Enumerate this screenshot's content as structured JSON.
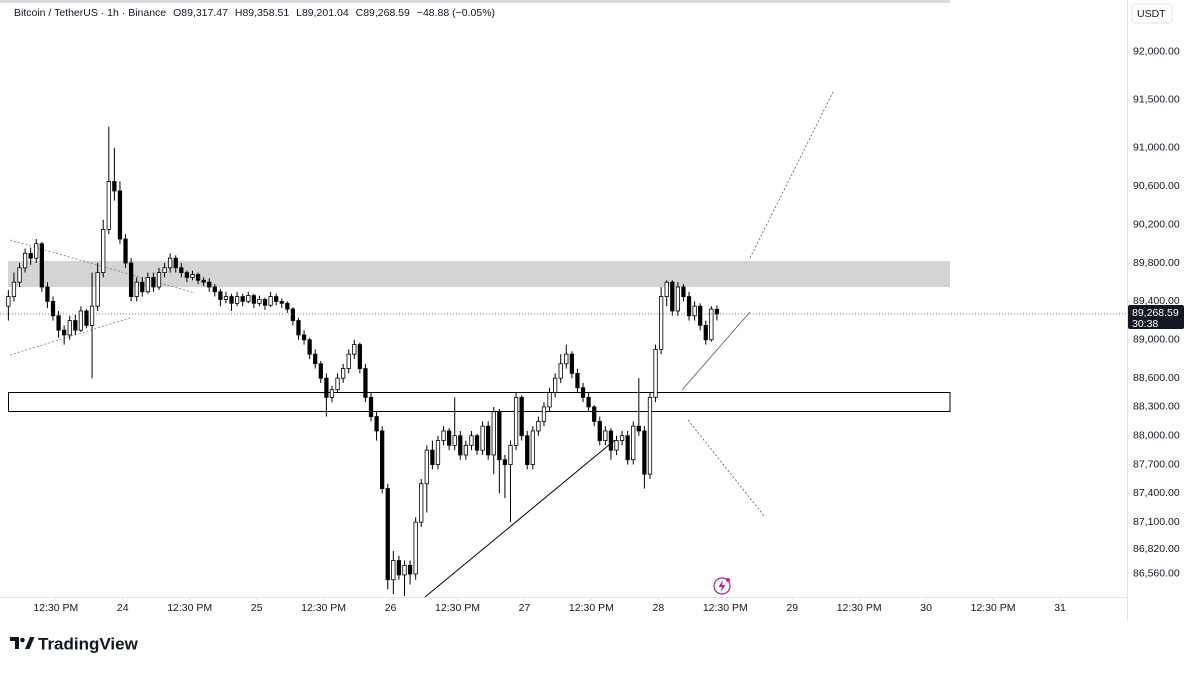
{
  "chart_data": {
    "type": "candlestick",
    "header": {
      "symbol": "Bitcoin / TetherUS · 1h · Binance",
      "letters": [
        "O",
        "H",
        "L",
        "C"
      ],
      "open": "89,317.47",
      "high": "89,358.51",
      "low": "89,201.04",
      "close": "89,268.59",
      "change": "−48.88 (−0.05%)"
    },
    "currency": "USDT",
    "price_label": "89,268.59",
    "countdown": "30:38",
    "brand": "TradingView",
    "up_color": "#ffffff",
    "down_color": "#000000",
    "xlim": [
      -1.5,
      200.5
    ],
    "ylim": [
      86320,
      92540
    ],
    "xticks": [
      {
        "value": 8.5,
        "label": "12:30 PM"
      },
      {
        "value": 20.5,
        "label": "24"
      },
      {
        "value": 32.5,
        "label": "12:30 PM"
      },
      {
        "value": 44.5,
        "label": "25"
      },
      {
        "value": 56.5,
        "label": "12:30 PM"
      },
      {
        "value": 68.5,
        "label": "26"
      },
      {
        "value": 80.5,
        "label": "12:30 PM"
      },
      {
        "value": 92.5,
        "label": "27"
      },
      {
        "value": 104.5,
        "label": "12:30 PM"
      },
      {
        "value": 116.5,
        "label": "28"
      },
      {
        "value": 128.5,
        "label": "12:30 PM"
      },
      {
        "value": 140.5,
        "label": "29"
      },
      {
        "value": 152.5,
        "label": "12:30 PM"
      },
      {
        "value": 164.5,
        "label": "30"
      },
      {
        "value": 176.5,
        "label": "12:30 PM"
      },
      {
        "value": 188.5,
        "label": "31"
      }
    ],
    "yticks": [
      {
        "value": 92000,
        "label": "92,000.00"
      },
      {
        "value": 91500,
        "label": "91,500.00"
      },
      {
        "value": 91000,
        "label": "91,000.00"
      },
      {
        "value": 90600,
        "label": "90,600.00"
      },
      {
        "value": 90200,
        "label": "90,200.00"
      },
      {
        "value": 89800,
        "label": "89,800.00"
      },
      {
        "value": 89400,
        "label": "89,400.00"
      },
      {
        "value": 89000,
        "label": "89,000.00"
      },
      {
        "value": 88600,
        "label": "88,600.00"
      },
      {
        "value": 88300,
        "label": "88,300.00"
      },
      {
        "value": 88000,
        "label": "88,000.00"
      },
      {
        "value": 87700,
        "label": "87,700.00"
      },
      {
        "value": 87400,
        "label": "87,400.00"
      },
      {
        "value": 87100,
        "label": "87,100.00"
      },
      {
        "value": 86820,
        "label": "86,820.00"
      },
      {
        "value": 86560,
        "label": "86,560.00"
      }
    ],
    "ohlc": [
      [
        89350,
        89520,
        89200,
        89450
      ],
      [
        89450,
        89700,
        89400,
        89600
      ],
      [
        89600,
        89800,
        89550,
        89750
      ],
      [
        89750,
        89950,
        89700,
        89900
      ],
      [
        89900,
        89960,
        89780,
        89850
      ],
      [
        89850,
        90050,
        89800,
        90000
      ],
      [
        90000,
        90020,
        89500,
        89550
      ],
      [
        89550,
        89600,
        89330,
        89400
      ],
      [
        89400,
        89450,
        89200,
        89250
      ],
      [
        89250,
        89300,
        89020,
        89100
      ],
      [
        89100,
        89150,
        88950,
        89050
      ],
      [
        89050,
        89250,
        89000,
        89200
      ],
      [
        89200,
        89260,
        89050,
        89100
      ],
      [
        89100,
        89350,
        89080,
        89300
      ],
      [
        89300,
        89320,
        89120,
        89150
      ],
      [
        89150,
        89700,
        88600,
        89350
      ],
      [
        89350,
        89800,
        89300,
        89700
      ],
      [
        89700,
        90250,
        89650,
        90150
      ],
      [
        90150,
        91220,
        90100,
        90650
      ],
      [
        90650,
        91000,
        90450,
        90550
      ],
      [
        90550,
        90650,
        90000,
        90050
      ],
      [
        90050,
        90100,
        89750,
        89800
      ],
      [
        89800,
        89850,
        89400,
        89450
      ],
      [
        89450,
        89650,
        89400,
        89600
      ],
      [
        89600,
        89650,
        89450,
        89500
      ],
      [
        89500,
        89700,
        89480,
        89650
      ],
      [
        89650,
        89700,
        89500,
        89550
      ],
      [
        89550,
        89750,
        89520,
        89700
      ],
      [
        89700,
        89800,
        89650,
        89750
      ],
      [
        89750,
        89900,
        89700,
        89850
      ],
      [
        89850,
        89880,
        89700,
        89750
      ],
      [
        89750,
        89800,
        89650,
        89700
      ],
      [
        89700,
        89720,
        89600,
        89650
      ],
      [
        89650,
        89720,
        89620,
        89680
      ],
      [
        89680,
        89700,
        89580,
        89620
      ],
      [
        89620,
        89650,
        89560,
        89600
      ],
      [
        89600,
        89640,
        89500,
        89550
      ],
      [
        89550,
        89580,
        89450,
        89500
      ],
      [
        89500,
        89530,
        89350,
        89420
      ],
      [
        89420,
        89500,
        89380,
        89450
      ],
      [
        89450,
        89480,
        89300,
        89380
      ],
      [
        89380,
        89500,
        89350,
        89450
      ],
      [
        89450,
        89480,
        89350,
        89400
      ],
      [
        89400,
        89500,
        89380,
        89460
      ],
      [
        89460,
        89480,
        89330,
        89380
      ],
      [
        89380,
        89460,
        89350,
        89420
      ],
      [
        89420,
        89440,
        89310,
        89360
      ],
      [
        89360,
        89500,
        89340,
        89450
      ],
      [
        89450,
        89480,
        89360,
        89400
      ],
      [
        89400,
        89430,
        89330,
        89380
      ],
      [
        89380,
        89400,
        89280,
        89320
      ],
      [
        89320,
        89340,
        89150,
        89200
      ],
      [
        89200,
        89230,
        89000,
        89050
      ],
      [
        89050,
        89100,
        88950,
        89000
      ],
      [
        89000,
        89020,
        88800,
        88850
      ],
      [
        88850,
        88900,
        88700,
        88750
      ],
      [
        88750,
        88780,
        88550,
        88600
      ],
      [
        88600,
        88650,
        88200,
        88400
      ],
      [
        88400,
        88520,
        88350,
        88480
      ],
      [
        88480,
        88650,
        88450,
        88600
      ],
      [
        88600,
        88750,
        88550,
        88700
      ],
      [
        88700,
        88900,
        88650,
        88850
      ],
      [
        88850,
        89000,
        88800,
        88950
      ],
      [
        88950,
        88970,
        88650,
        88700
      ],
      [
        88700,
        88750,
        88350,
        88400
      ],
      [
        88400,
        88450,
        88150,
        88200
      ],
      [
        88200,
        88250,
        87950,
        88050
      ],
      [
        88050,
        88100,
        87400,
        87450
      ],
      [
        87450,
        87500,
        86400,
        86500
      ],
      [
        86500,
        86800,
        86350,
        86700
      ],
      [
        86700,
        86750,
        86500,
        86550
      ],
      [
        86550,
        86700,
        86330,
        86650
      ],
      [
        86650,
        86700,
        86450,
        86560
      ],
      [
        86560,
        87150,
        86500,
        87100
      ],
      [
        87100,
        87550,
        87050,
        87500
      ],
      [
        87500,
        87900,
        87200,
        87850
      ],
      [
        87850,
        87950,
        87650,
        87700
      ],
      [
        87700,
        88000,
        87650,
        87950
      ],
      [
        87950,
        88100,
        87900,
        88050
      ],
      [
        88050,
        88080,
        87850,
        87900
      ],
      [
        87900,
        88400,
        87850,
        88000
      ],
      [
        88000,
        88050,
        87750,
        87800
      ],
      [
        87800,
        87950,
        87750,
        87900
      ],
      [
        87900,
        88050,
        87850,
        88000
      ],
      [
        88000,
        88020,
        87800,
        87850
      ],
      [
        87850,
        88150,
        87800,
        88100
      ],
      [
        88100,
        88150,
        87750,
        87800
      ],
      [
        87800,
        88300,
        87600,
        88250
      ],
      [
        88250,
        88280,
        87400,
        87750
      ],
      [
        87750,
        87800,
        87350,
        87700
      ],
      [
        87700,
        87950,
        87100,
        87900
      ],
      [
        87900,
        88450,
        87850,
        88400
      ],
      [
        88400,
        88420,
        87950,
        88000
      ],
      [
        88000,
        88050,
        87650,
        87700
      ],
      [
        87700,
        88100,
        87650,
        88050
      ],
      [
        88050,
        88200,
        88000,
        88150
      ],
      [
        88150,
        88350,
        88100,
        88300
      ],
      [
        88300,
        88500,
        88250,
        88450
      ],
      [
        88450,
        88650,
        88400,
        88600
      ],
      [
        88600,
        88850,
        88550,
        88750
      ],
      [
        88750,
        88950,
        88700,
        88850
      ],
      [
        88850,
        88880,
        88600,
        88650
      ],
      [
        88650,
        88700,
        88450,
        88500
      ],
      [
        88500,
        88550,
        88350,
        88400
      ],
      [
        88400,
        88450,
        88250,
        88300
      ],
      [
        88300,
        88320,
        88100,
        88150
      ],
      [
        88150,
        88200,
        87900,
        87950
      ],
      [
        87950,
        88100,
        87900,
        88050
      ],
      [
        88050,
        88080,
        87750,
        87850
      ],
      [
        87850,
        88000,
        87800,
        87950
      ],
      [
        87950,
        88050,
        87900,
        88000
      ],
      [
        88000,
        88050,
        87700,
        87750
      ],
      [
        87750,
        88150,
        87700,
        88100
      ],
      [
        88100,
        88600,
        88000,
        88050
      ],
      [
        88050,
        88100,
        87450,
        87600
      ],
      [
        87600,
        88450,
        87550,
        88400
      ],
      [
        88400,
        88950,
        88350,
        88900
      ],
      [
        88900,
        89550,
        88850,
        89450
      ],
      [
        89450,
        89620,
        89350,
        89600
      ],
      [
        89600,
        89620,
        89250,
        89300
      ],
      [
        89300,
        89600,
        89250,
        89550
      ],
      [
        89550,
        89580,
        89400,
        89450
      ],
      [
        89450,
        89500,
        89200,
        89250
      ],
      [
        89250,
        89400,
        89200,
        89350
      ],
      [
        89350,
        89380,
        89100,
        89150
      ],
      [
        89150,
        89200,
        88950,
        89000
      ],
      [
        89000,
        89350,
        88980,
        89320
      ],
      [
        89317.47,
        89358.51,
        89201.04,
        89268.59
      ]
    ]
  }
}
